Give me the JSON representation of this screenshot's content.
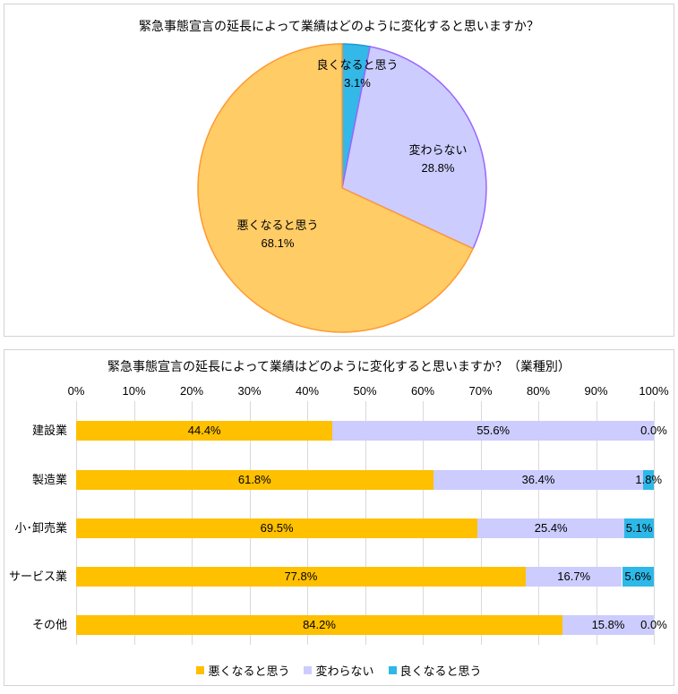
{
  "chart_data": [
    {
      "type": "pie",
      "title": "緊急事態宣言の延長によって業績はどのように変化すると思いますか？",
      "labels": [
        "良くなると思う",
        "変わらない",
        "悪くなると思う"
      ],
      "values": [
        3.1,
        28.8,
        68.1
      ],
      "unit": "%",
      "colors": [
        "#33B8E8",
        "#CCCCFF",
        "#FFCC66"
      ],
      "border_colors": [
        "#1E9AD6",
        "#9966FF",
        "#FF9933"
      ],
      "start_angle_deg": 0,
      "direction": "clockwise",
      "legend_position": "none",
      "data_labels": "name-and-percent"
    },
    {
      "type": "bar",
      "orientation": "horizontal-stacked",
      "title": "緊急事態宣言の延長によって業績はどのように変化すると思いますか？（業種別）",
      "categories": [
        "建設業",
        "製造業",
        "小･卸売業",
        "サービス業",
        "その他"
      ],
      "series": [
        {
          "name": "悪くなると思う",
          "color": "#FFC000",
          "values": [
            44.4,
            61.8,
            69.5,
            77.8,
            84.2
          ]
        },
        {
          "name": "変わらない",
          "color": "#CCCCFF",
          "values": [
            55.6,
            36.4,
            25.4,
            16.7,
            15.8
          ]
        },
        {
          "name": "良くなると思う",
          "color": "#2EB8E8",
          "values": [
            0.0,
            1.8,
            5.1,
            5.6,
            0.0
          ]
        }
      ],
      "xlim": [
        0,
        100
      ],
      "x_tick_labels": [
        "0%",
        "10%",
        "20%",
        "30%",
        "40%",
        "50%",
        "60%",
        "70%",
        "80%",
        "90%",
        "100%"
      ],
      "axis_position": "top",
      "grid": true,
      "gridline_color": "#D9D9D9",
      "legend_position": "bottom",
      "data_labels": "percent-inside"
    }
  ]
}
